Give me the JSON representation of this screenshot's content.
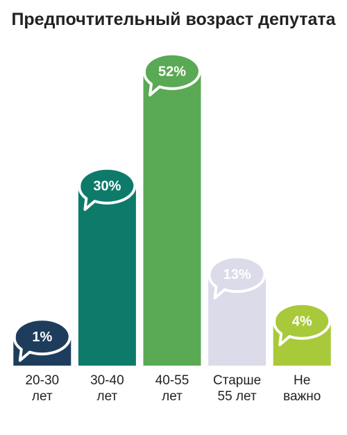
{
  "chart_data": {
    "type": "bar",
    "title": "Предпочтительный возраст депутата",
    "categories": [
      "20-30 лет",
      "30-40 лет",
      "40-55 лет",
      "Старше 55 лет",
      "Не важно"
    ],
    "values": [
      1,
      30,
      52,
      13,
      4
    ],
    "value_labels": [
      "1%",
      "30%",
      "52%",
      "13%",
      "4%"
    ],
    "colors": [
      "#1e3d5c",
      "#0d7a6a",
      "#5aa954",
      "#dcdbea",
      "#a8c93a"
    ]
  }
}
